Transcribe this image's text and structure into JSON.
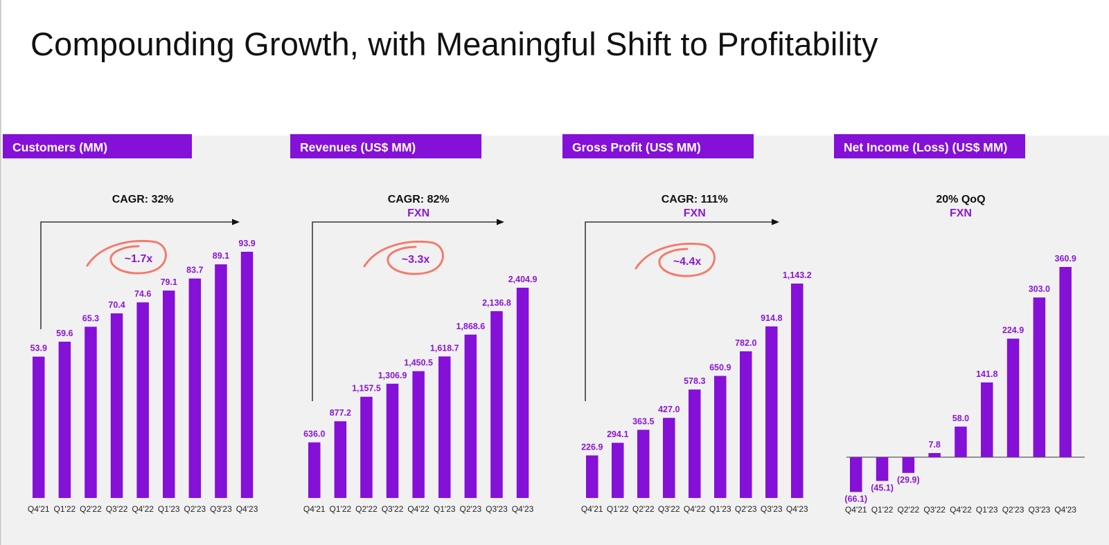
{
  "page": {
    "title": "Compounding Growth, with Meaningful Shift to Profitability"
  },
  "colors": {
    "bar": "#8510d8",
    "header_bg": "#8510d8",
    "value_label": "#8a16d6",
    "circle": "#f47a6b",
    "panel_bg": "#f1f1f1"
  },
  "chart_data": [
    {
      "type": "bar",
      "title": "Customers (MM)",
      "categories": [
        "Q4'21",
        "Q1'22",
        "Q2'22",
        "Q3'22",
        "Q4'22",
        "Q1'23",
        "Q2'23",
        "Q3'23",
        "Q4'23"
      ],
      "values": [
        53.9,
        59.6,
        65.3,
        70.4,
        74.6,
        79.1,
        83.7,
        89.1,
        93.9
      ],
      "value_labels": [
        "53.9",
        "59.6",
        "65.3",
        "70.4",
        "74.6",
        "79.1",
        "83.7",
        "89.1",
        "93.9"
      ],
      "growth_label": "CAGR: 32%",
      "sub_label": "",
      "multiple": "~1.7x"
    },
    {
      "type": "bar",
      "title": "Revenues (US$ MM)",
      "categories": [
        "Q4'21",
        "Q1'22",
        "Q2'22",
        "Q3'22",
        "Q4'22",
        "Q1'23",
        "Q2'23",
        "Q3'23",
        "Q4'23"
      ],
      "values": [
        636.0,
        877.2,
        1157.5,
        1306.9,
        1450.5,
        1618.7,
        1868.6,
        2136.8,
        2404.9
      ],
      "value_labels": [
        "636.0",
        "877.2",
        "1,157.5",
        "1,306.9",
        "1,450.5",
        "1,618.7",
        "1,868.6",
        "2,136.8",
        "2,404.9"
      ],
      "growth_label": "CAGR: 82%",
      "sub_label": "FXN",
      "multiple": "~3.3x"
    },
    {
      "type": "bar",
      "title": "Gross Profit (US$ MM)",
      "categories": [
        "Q4'21",
        "Q1'22",
        "Q2'22",
        "Q3'22",
        "Q4'22",
        "Q1'23",
        "Q2'23",
        "Q3'23",
        "Q4'23"
      ],
      "values": [
        226.9,
        294.1,
        363.5,
        427.0,
        578.3,
        650.9,
        782.0,
        914.8,
        1143.2
      ],
      "value_labels": [
        "226.9",
        "294.1",
        "363.5",
        "427.0",
        "578.3",
        "650.9",
        "782.0",
        "914.8",
        "1,143.2"
      ],
      "growth_label": "CAGR: 111%",
      "sub_label": "FXN",
      "multiple": "~4.4x"
    },
    {
      "type": "bar",
      "title": "Net Income (Loss) (US$ MM)",
      "categories": [
        "Q4'21",
        "Q1'22",
        "Q2'22",
        "Q3'22",
        "Q4'22",
        "Q1'23",
        "Q2'23",
        "Q3'23",
        "Q4'23"
      ],
      "values": [
        -66.1,
        -45.1,
        -29.9,
        7.8,
        58.0,
        141.8,
        224.9,
        303.0,
        360.9
      ],
      "value_labels": [
        "(66.1)",
        "(45.1)",
        "(29.9)",
        "7.8",
        "58.0",
        "141.8",
        "224.9",
        "303.0",
        "360.9"
      ],
      "growth_label": "20% QoQ",
      "sub_label": "FXN",
      "multiple": ""
    }
  ]
}
